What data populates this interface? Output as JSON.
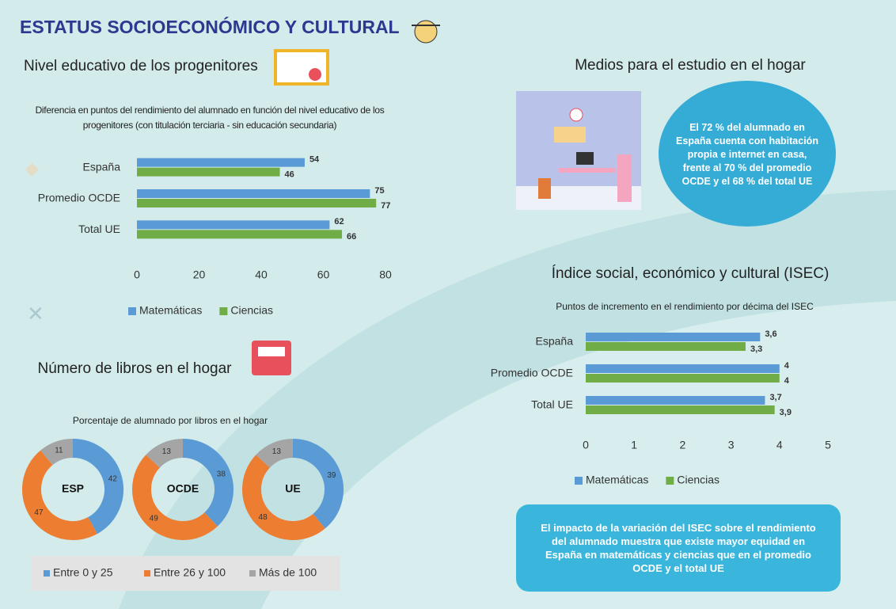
{
  "title": "ESTATUS SOCIOECONÓMICO Y CULTURAL",
  "study_resources": {
    "title": "Medios para el estudio en el hogar",
    "text": "El 72 % del alumnado en España cuenta con habitación propia e internet en casa, frente al 70 % del promedio OCDE y el 68 % del total UE"
  },
  "chart_data": [
    {
      "type": "hbar",
      "title": "Nivel educativo de los progenitores",
      "subtitle": "Diferencia en puntos del rendimiento del alumnado en función del nivel educativo de los progenitores (con titulación terciaria - sin educación secundaria)",
      "categories": [
        "España",
        "Promedio OCDE",
        "Total UE"
      ],
      "series": [
        {
          "name": "Matemáticas",
          "color": "#5b9bd5",
          "values": [
            54,
            75,
            62
          ]
        },
        {
          "name": "Ciencias",
          "color": "#70ad47",
          "values": [
            46,
            77,
            66
          ]
        }
      ],
      "xlim": [
        0,
        80
      ],
      "xticks": [
        0,
        20,
        40,
        60,
        80
      ],
      "legend": "bottom"
    },
    {
      "type": "donut",
      "title": "Número de libros en el hogar",
      "subtitle": "Porcentaje de alumnado por libros en el hogar",
      "categories": [
        "Entre 0 y 25",
        "Entre 26 y 100",
        "Más de 100"
      ],
      "colors": [
        "#5b9bd5",
        "#ed7d31",
        "#a5a5a5"
      ],
      "series": [
        {
          "name": "ESP",
          "values": [
            42,
            47,
            11
          ]
        },
        {
          "name": "OCDE",
          "values": [
            38,
            49,
            13
          ]
        },
        {
          "name": "UE",
          "values": [
            39,
            48,
            13
          ]
        }
      ],
      "legend": "bottom"
    },
    {
      "type": "hbar",
      "title": "Índice social, económico y cultural (ISEC)",
      "subtitle": "Puntos de incremento en el rendimiento por décima del ISEC",
      "categories": [
        "España",
        "Promedio OCDE",
        "Total UE"
      ],
      "series": [
        {
          "name": "Matemáticas",
          "color": "#5b9bd5",
          "values": [
            3.6,
            4,
            3.7
          ],
          "value_labels": [
            "3,6",
            "4",
            "3,7"
          ]
        },
        {
          "name": "Ciencias",
          "color": "#70ad47",
          "values": [
            3.3,
            4,
            3.9
          ],
          "value_labels": [
            "3,3",
            "4",
            "3,9"
          ]
        }
      ],
      "xlim": [
        0,
        5
      ],
      "xticks": [
        0,
        1,
        2,
        3,
        4,
        5
      ],
      "legend": "bottom",
      "annotation": "El impacto de la variación del ISEC sobre el rendimiento del alumnado muestra que existe mayor equidad en España en matemáticas y ciencias que en el promedio OCDE y el total UE"
    }
  ]
}
